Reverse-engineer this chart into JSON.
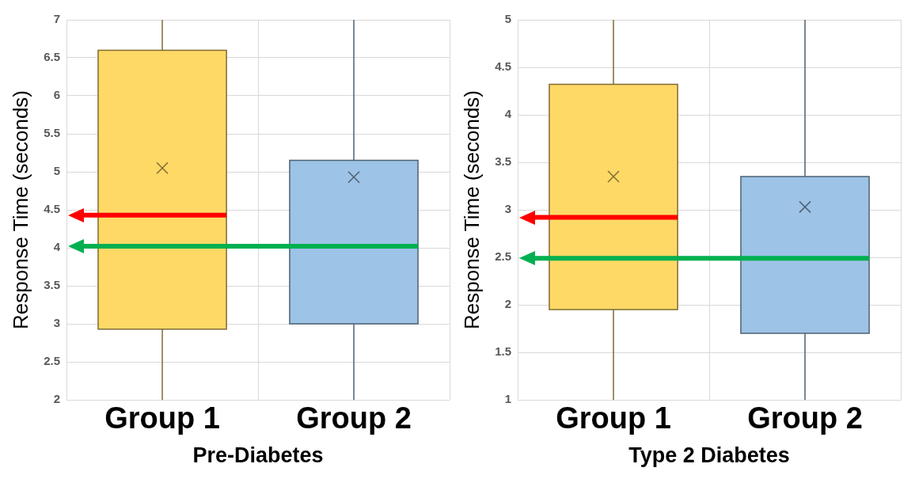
{
  "chart_data": [
    {
      "type": "box",
      "xlabel": "Pre-Diabetes",
      "ylabel": "Response Time (seconds)",
      "categories": [
        "Group 1",
        "Group 2"
      ],
      "series": [
        {
          "colors": [
            "#ffd966",
            "#9dc3e6"
          ],
          "boxes": [
            {
              "low": 2,
              "q1": 2.93,
              "median": null,
              "q3": 6.6,
              "high": 7,
              "mean": 5.05
            },
            {
              "low": 2,
              "q1": 3,
              "median": null,
              "q3": 5.15,
              "high": 7,
              "mean": 4.93
            }
          ]
        }
      ],
      "ylim": [
        2,
        7
      ],
      "yticks": [
        2,
        2.5,
        3,
        3.5,
        4,
        4.5,
        5,
        5.5,
        6,
        6.5,
        7
      ],
      "grid": true,
      "marker": "cross",
      "ref_lines": [
        {
          "axis": "y",
          "value": 4.43,
          "color": "#ff0000"
        },
        {
          "axis": "y",
          "value": 4.02,
          "color": "#00b050"
        }
      ]
    },
    {
      "type": "box",
      "xlabel": "Type 2 Diabetes",
      "ylabel": "Response Time (seconds)",
      "categories": [
        "Group 1",
        "Group 2"
      ],
      "series": [
        {
          "colors": [
            "#ffd966",
            "#9dc3e6"
          ],
          "boxes": [
            {
              "low": 1,
              "q1": 1.95,
              "median": null,
              "q3": 4.32,
              "high": 5,
              "mean": 3.35
            },
            {
              "low": 1,
              "q1": 1.7,
              "median": null,
              "q3": 3.35,
              "high": 5,
              "mean": 3.03
            }
          ]
        }
      ],
      "ylim": [
        1,
        5
      ],
      "yticks": [
        1,
        1.5,
        2,
        2.5,
        3,
        3.5,
        4,
        4.5,
        5
      ],
      "grid": true,
      "marker": "cross",
      "ref_lines": [
        {
          "axis": "y",
          "value": 2.92,
          "color": "#ff0000"
        },
        {
          "axis": "y",
          "value": 2.49,
          "color": "#00b050"
        }
      ]
    }
  ]
}
